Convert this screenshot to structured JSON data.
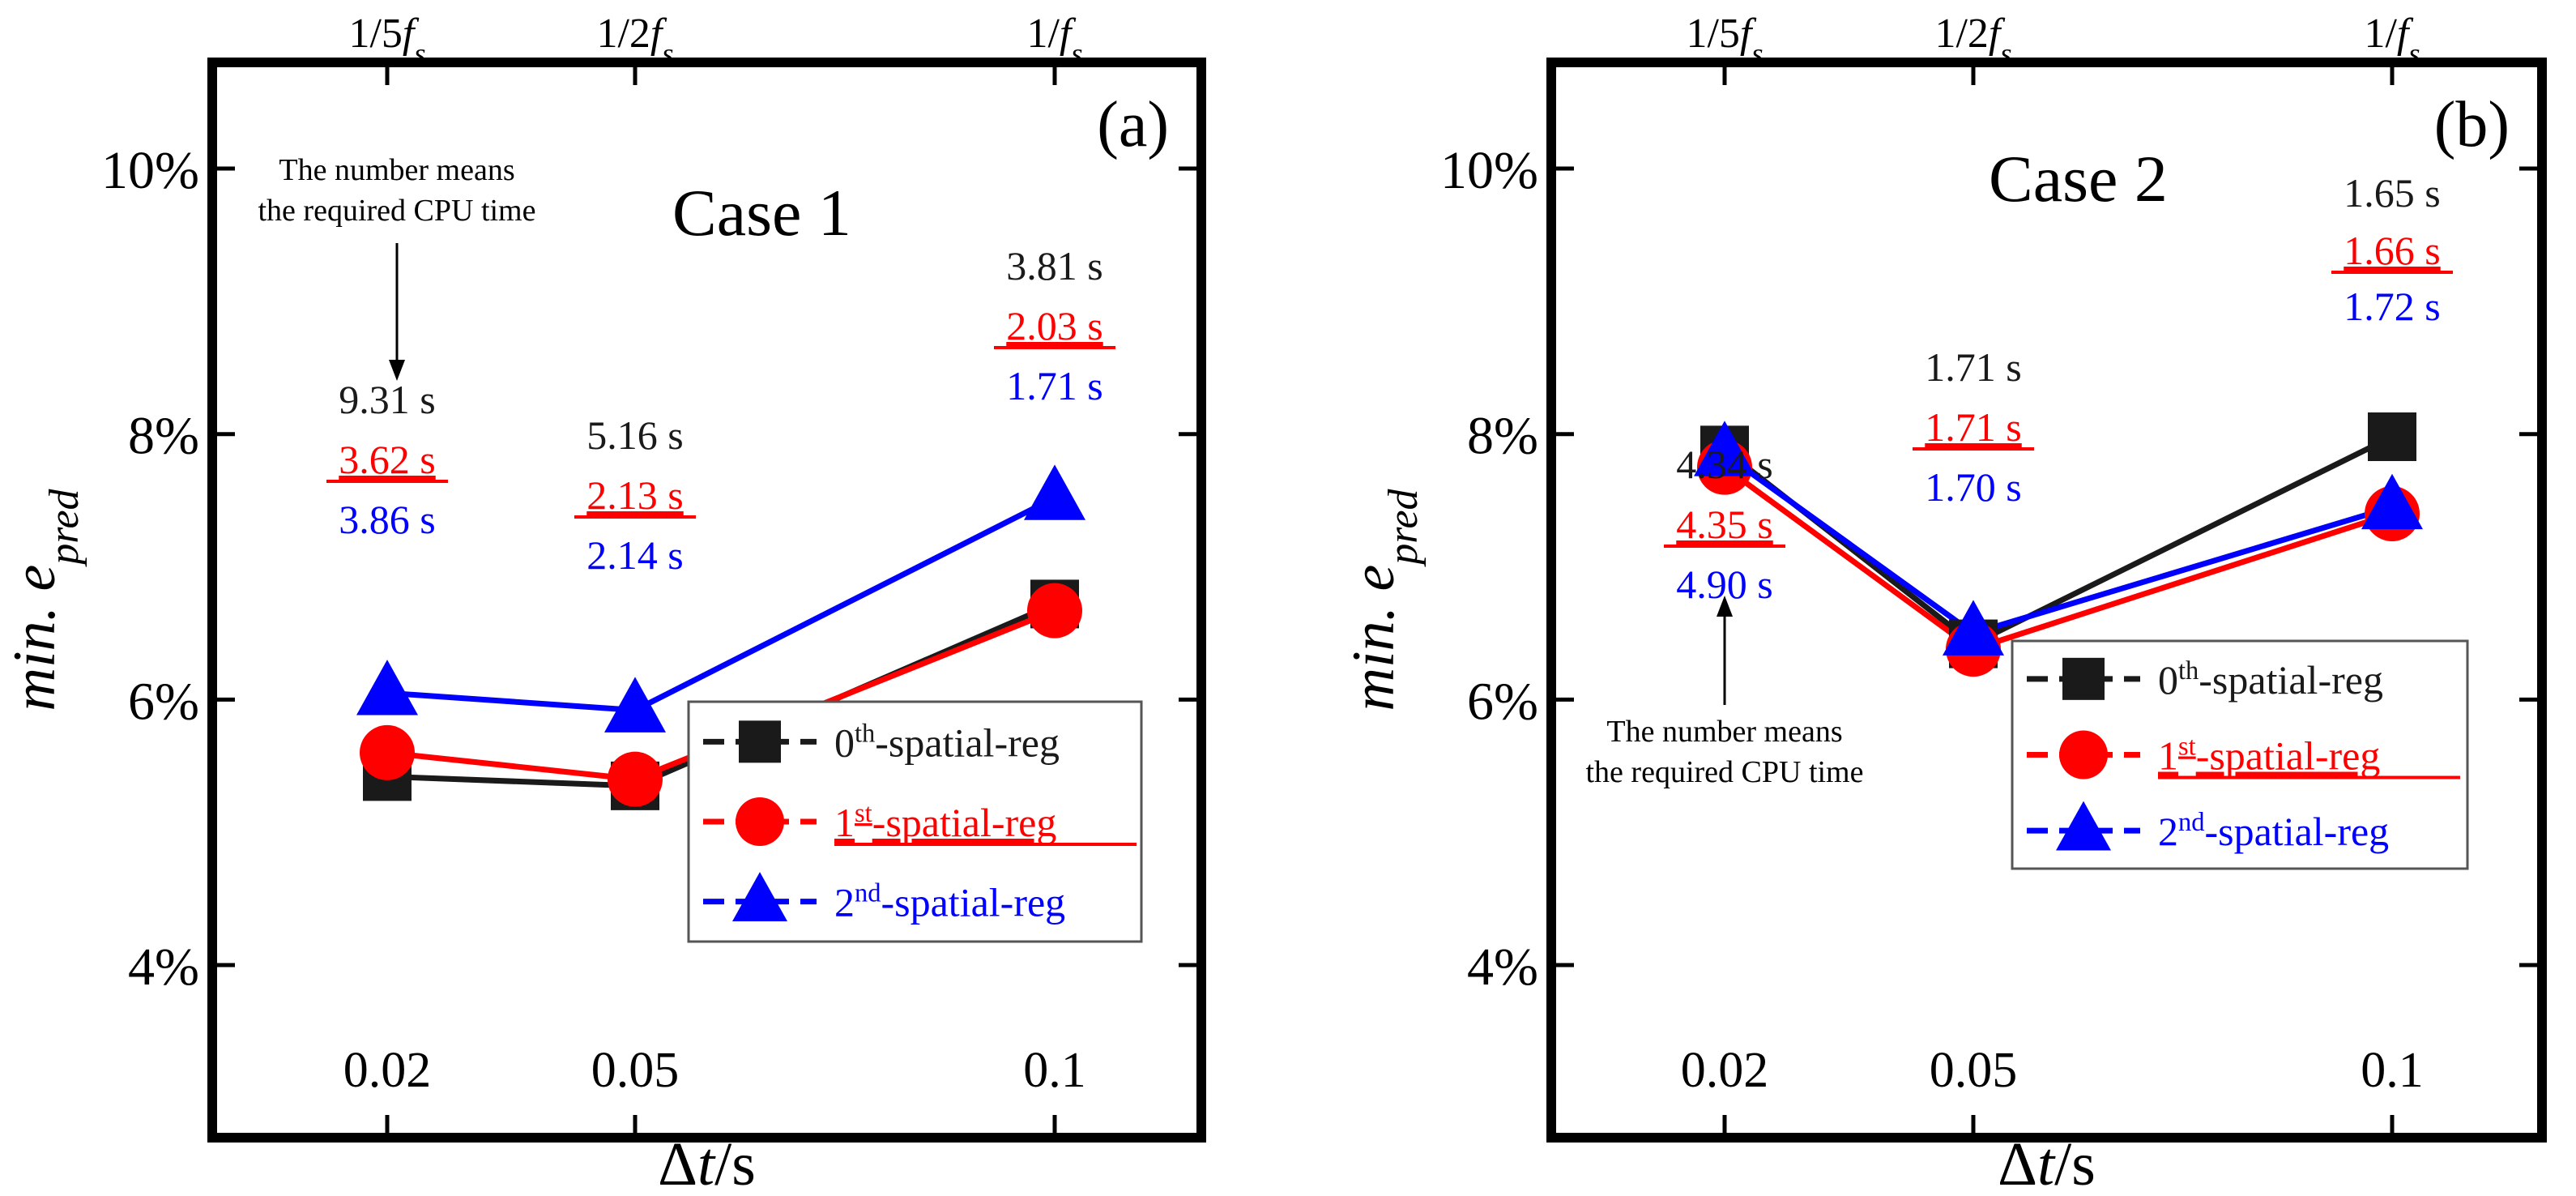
{
  "series_styles": [
    {
      "key": "0th",
      "color": "#1a1a1a",
      "marker": "square"
    },
    {
      "key": "1st",
      "color": "#ff0000",
      "marker": "circle"
    },
    {
      "key": "2nd",
      "color": "#0000ff",
      "marker": "triangle"
    }
  ],
  "legend_labels": [
    {
      "base": "0",
      "sup": "th",
      "rest": "-spatial-reg",
      "underline": false
    },
    {
      "base": "1",
      "sup": "st",
      "rest": "-spatial-reg",
      "underline": true
    },
    {
      "base": "2",
      "sup": "nd",
      "rest": "-spatial-reg",
      "underline": false
    }
  ],
  "chart_data": [
    {
      "type": "line",
      "panel_label": "(a)",
      "case_label": "Case 1",
      "xlabel": "Δt/s",
      "ylabel": "min. e_pred",
      "x": [
        0.02,
        0.05,
        0.1
      ],
      "x_tick_labels": [
        "0.02",
        "0.05",
        "0.1"
      ],
      "top_tick_labels": [
        "1/5f_s",
        "1/2f_s",
        "1/f_s"
      ],
      "y_ticks": [
        4,
        6,
        8,
        10
      ],
      "y_tick_labels": [
        "4%",
        "6%",
        "8%",
        "10%"
      ],
      "ylim": [
        2.7,
        10.8
      ],
      "series": [
        {
          "key": "0th",
          "values": [
            5.42,
            5.35,
            6.72
          ]
        },
        {
          "key": "1st",
          "values": [
            5.6,
            5.4,
            6.67
          ]
        },
        {
          "key": "2nd",
          "values": [
            6.05,
            5.92,
            7.52
          ]
        }
      ],
      "cpu_times": [
        {
          "x": 0.02,
          "labels": [
            "9.31 s",
            "3.62 s",
            "3.86 s"
          ]
        },
        {
          "x": 0.05,
          "labels": [
            "5.16 s",
            "2.13 s",
            "2.14 s"
          ]
        },
        {
          "x": 0.1,
          "labels": [
            "3.81 s",
            "2.03 s",
            "1.71 s"
          ]
        }
      ],
      "note": [
        "The number means",
        "the required CPU time"
      ],
      "legend_position": "bottom-right"
    },
    {
      "type": "line",
      "panel_label": "(b)",
      "case_label": "Case 2",
      "xlabel": "Δt/s",
      "ylabel": "min. e_pred",
      "x": [
        0.02,
        0.05,
        0.1
      ],
      "x_tick_labels": [
        "0.02",
        "0.05",
        "0.1"
      ],
      "top_tick_labels": [
        "1/5f_s",
        "1/2f_s",
        "1/f_s"
      ],
      "y_ticks": [
        4,
        6,
        8,
        10
      ],
      "y_tick_labels": [
        "4%",
        "6%",
        "8%",
        "10%"
      ],
      "ylim": [
        2.7,
        10.8
      ],
      "series": [
        {
          "key": "0th",
          "values": [
            7.88,
            6.42,
            7.98
          ]
        },
        {
          "key": "1st",
          "values": [
            7.75,
            6.38,
            7.4
          ]
        },
        {
          "key": "2nd",
          "values": [
            7.85,
            6.5,
            7.45
          ]
        }
      ],
      "cpu_times": [
        {
          "x": 0.02,
          "labels": [
            "4.34 s",
            "4.35 s",
            "4.90 s"
          ]
        },
        {
          "x": 0.05,
          "labels": [
            "1.71 s",
            "1.71 s",
            "1.70 s"
          ]
        },
        {
          "x": 0.1,
          "labels": [
            "1.65 s",
            "1.66 s",
            "1.72 s"
          ]
        }
      ],
      "note": [
        "The number means",
        "the required CPU time"
      ],
      "legend_position": "bottom-right"
    }
  ]
}
